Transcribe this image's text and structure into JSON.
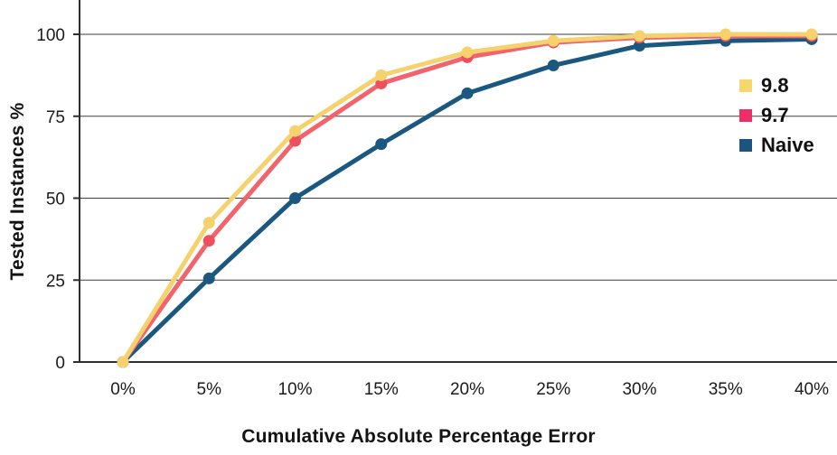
{
  "chart_data": {
    "type": "line",
    "title": "",
    "xlabel": "Cumulative Absolute Percentage Error",
    "ylabel": "Tested Instances %",
    "x": [
      0,
      5,
      10,
      15,
      20,
      25,
      30,
      35,
      40
    ],
    "x_tick_labels": [
      "0%",
      "5%",
      "10%",
      "15%",
      "20%",
      "25%",
      "30%",
      "35%",
      "40%"
    ],
    "y_ticks": [
      0,
      25,
      50,
      75,
      100
    ],
    "y_tick_labels": [
      "0",
      "25",
      "50",
      "75",
      "100"
    ],
    "xlim": [
      0,
      40
    ],
    "ylim": [
      0,
      100
    ],
    "grid": "horizontal",
    "legend_position": "right",
    "legend_order": [
      "9.8",
      "9.7",
      "Naive"
    ],
    "series": [
      {
        "name": "Naive",
        "color": "#1B5880",
        "legend_color": "#1A557E",
        "marker_color": "#1B5880",
        "values": [
          0,
          25.5,
          50,
          66.5,
          82,
          90.5,
          96.5,
          98,
          98.5
        ]
      },
      {
        "name": "9.7",
        "color": "#F2646B",
        "legend_color": "#EE2E68",
        "marker_color": "#EE4F5C",
        "values": [
          0,
          37,
          67.5,
          85,
          93,
          97.5,
          99,
          99.5,
          99.5
        ]
      },
      {
        "name": "9.8",
        "color": "#F5D26E",
        "legend_color": "#F5D76E",
        "marker_color": "#F5D26E",
        "values": [
          0,
          42.5,
          70.5,
          87.5,
          94.5,
          98,
          99.5,
          100,
          100
        ]
      }
    ],
    "style": {
      "axis_color": "#2e2e2e",
      "grid_color": "#3d3d3d",
      "tick_label_color": "#1b1b1b",
      "line_width": 5,
      "marker_radius": 6.5
    }
  }
}
